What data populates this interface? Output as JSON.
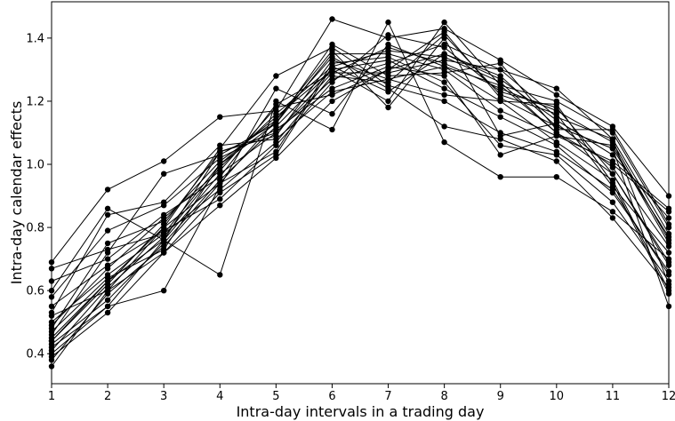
{
  "chart_data": {
    "type": "line",
    "title": "",
    "xlabel": "Intra-day intervals in a trading day",
    "ylabel": "Intra-day calendar effects",
    "xlim": [
      1,
      12
    ],
    "ylim": [
      0.305,
      1.515
    ],
    "x": [
      1,
      2,
      3,
      4,
      5,
      6,
      7,
      8,
      9,
      10,
      11,
      12
    ],
    "x_ticks": [
      "1",
      "2",
      "3",
      "4",
      "5",
      "6",
      "7",
      "8",
      "9",
      "10",
      "11",
      "12"
    ],
    "y_ticks": [
      0.4,
      0.6,
      0.8,
      1.0,
      1.2,
      1.4
    ],
    "y_tick_labels": [
      "0.4",
      "0.6",
      "0.8",
      "1.0",
      "1.2",
      "1.4"
    ],
    "grid": false,
    "marker": "circle",
    "line_color": "#000000",
    "series": [
      {
        "values": [
          0.69,
          0.92,
          1.01,
          1.15,
          1.17,
          1.46,
          1.4,
          1.43,
          1.33,
          1.22,
          1.12,
          0.9
        ]
      },
      {
        "values": [
          0.36,
          0.6,
          0.72,
          0.87,
          1.02,
          1.2,
          1.3,
          1.35,
          1.28,
          1.12,
          1.05,
          0.55
        ]
      },
      {
        "values": [
          0.6,
          0.86,
          0.76,
          0.65,
          1.2,
          1.11,
          1.45,
          1.07,
          0.96,
          0.96,
          0.85,
          0.7
        ]
      },
      {
        "values": [
          0.45,
          0.63,
          0.8,
          1.05,
          1.28,
          1.37,
          1.25,
          1.2,
          1.1,
          1.04,
          0.92,
          0.65
        ]
      },
      {
        "values": [
          0.5,
          0.65,
          0.78,
          1.0,
          1.15,
          1.3,
          1.2,
          1.45,
          1.25,
          1.1,
          1.0,
          0.85
        ]
      },
      {
        "values": [
          0.4,
          0.55,
          0.76,
          0.97,
          1.1,
          1.27,
          1.32,
          1.38,
          1.3,
          1.15,
          1.08,
          0.62
        ]
      },
      {
        "values": [
          0.42,
          0.55,
          0.6,
          0.93,
          1.24,
          1.16,
          1.38,
          1.31,
          1.25,
          1.2,
          1.1,
          0.8
        ]
      },
      {
        "values": [
          0.53,
          0.84,
          0.88,
          1.06,
          1.08,
          1.23,
          1.27,
          1.22,
          1.2,
          1.07,
          0.95,
          0.6
        ]
      },
      {
        "values": [
          0.46,
          0.72,
          0.97,
          1.03,
          1.13,
          1.35,
          1.35,
          1.3,
          1.17,
          1.09,
          1.06,
          0.75
        ]
      },
      {
        "values": [
          0.63,
          0.7,
          0.84,
          0.96,
          1.19,
          1.29,
          1.29,
          1.33,
          1.3,
          1.24,
          1.08,
          0.78
        ]
      },
      {
        "values": [
          0.48,
          0.75,
          0.82,
          1.01,
          1.14,
          1.36,
          1.18,
          1.4,
          1.09,
          1.13,
          0.99,
          0.74
        ]
      },
      {
        "values": [
          0.55,
          0.68,
          0.79,
          0.89,
          1.06,
          1.26,
          1.41,
          1.37,
          1.23,
          1.18,
          0.97,
          0.68
        ]
      },
      {
        "values": [
          0.38,
          0.59,
          0.74,
          0.94,
          1.04,
          1.32,
          1.34,
          1.26,
          1.06,
          1.03,
          0.88,
          0.63
        ]
      },
      {
        "values": [
          0.41,
          0.61,
          0.77,
          0.99,
          1.16,
          1.31,
          1.23,
          1.35,
          1.27,
          1.14,
          1.03,
          0.83
        ]
      },
      {
        "values": [
          0.44,
          0.62,
          0.81,
          1.04,
          1.09,
          1.33,
          1.27,
          1.31,
          1.2,
          1.19,
          0.94,
          0.59
        ]
      },
      {
        "values": [
          0.58,
          0.79,
          0.87,
          1.02,
          1.11,
          1.24,
          1.31,
          1.28,
          1.03,
          1.09,
          1.01,
          0.86
        ]
      },
      {
        "values": [
          0.67,
          0.73,
          0.78,
          0.92,
          1.07,
          1.28,
          1.26,
          1.41,
          1.22,
          1.16,
          0.93,
          0.72
        ]
      },
      {
        "values": [
          0.43,
          0.57,
          0.75,
          0.95,
          1.12,
          1.3,
          1.33,
          1.24,
          1.15,
          1.06,
          0.91,
          0.66
        ]
      },
      {
        "values": [
          0.47,
          0.64,
          0.73,
          1.0,
          1.13,
          1.38,
          1.28,
          1.29,
          1.32,
          1.11,
          1.11,
          0.81
        ]
      },
      {
        "values": [
          0.39,
          0.53,
          0.72,
          0.91,
          1.03,
          1.31,
          1.36,
          1.34,
          1.26,
          1.1,
          0.97,
          0.69
        ]
      },
      {
        "values": [
          0.49,
          0.67,
          0.83,
          0.98,
          1.18,
          1.22,
          1.3,
          1.42,
          1.21,
          1.12,
          1.05,
          0.77
        ]
      },
      {
        "values": [
          0.52,
          0.6,
          0.8,
          0.94,
          1.14,
          1.34,
          1.24,
          1.12,
          1.08,
          1.01,
          0.83,
          0.61
        ]
      },
      {
        "values": [
          0.44,
          0.63,
          0.76,
          1.04,
          1.1,
          1.29,
          1.37,
          1.32,
          1.24,
          1.17,
          1.07,
          0.76
        ]
      }
    ]
  }
}
